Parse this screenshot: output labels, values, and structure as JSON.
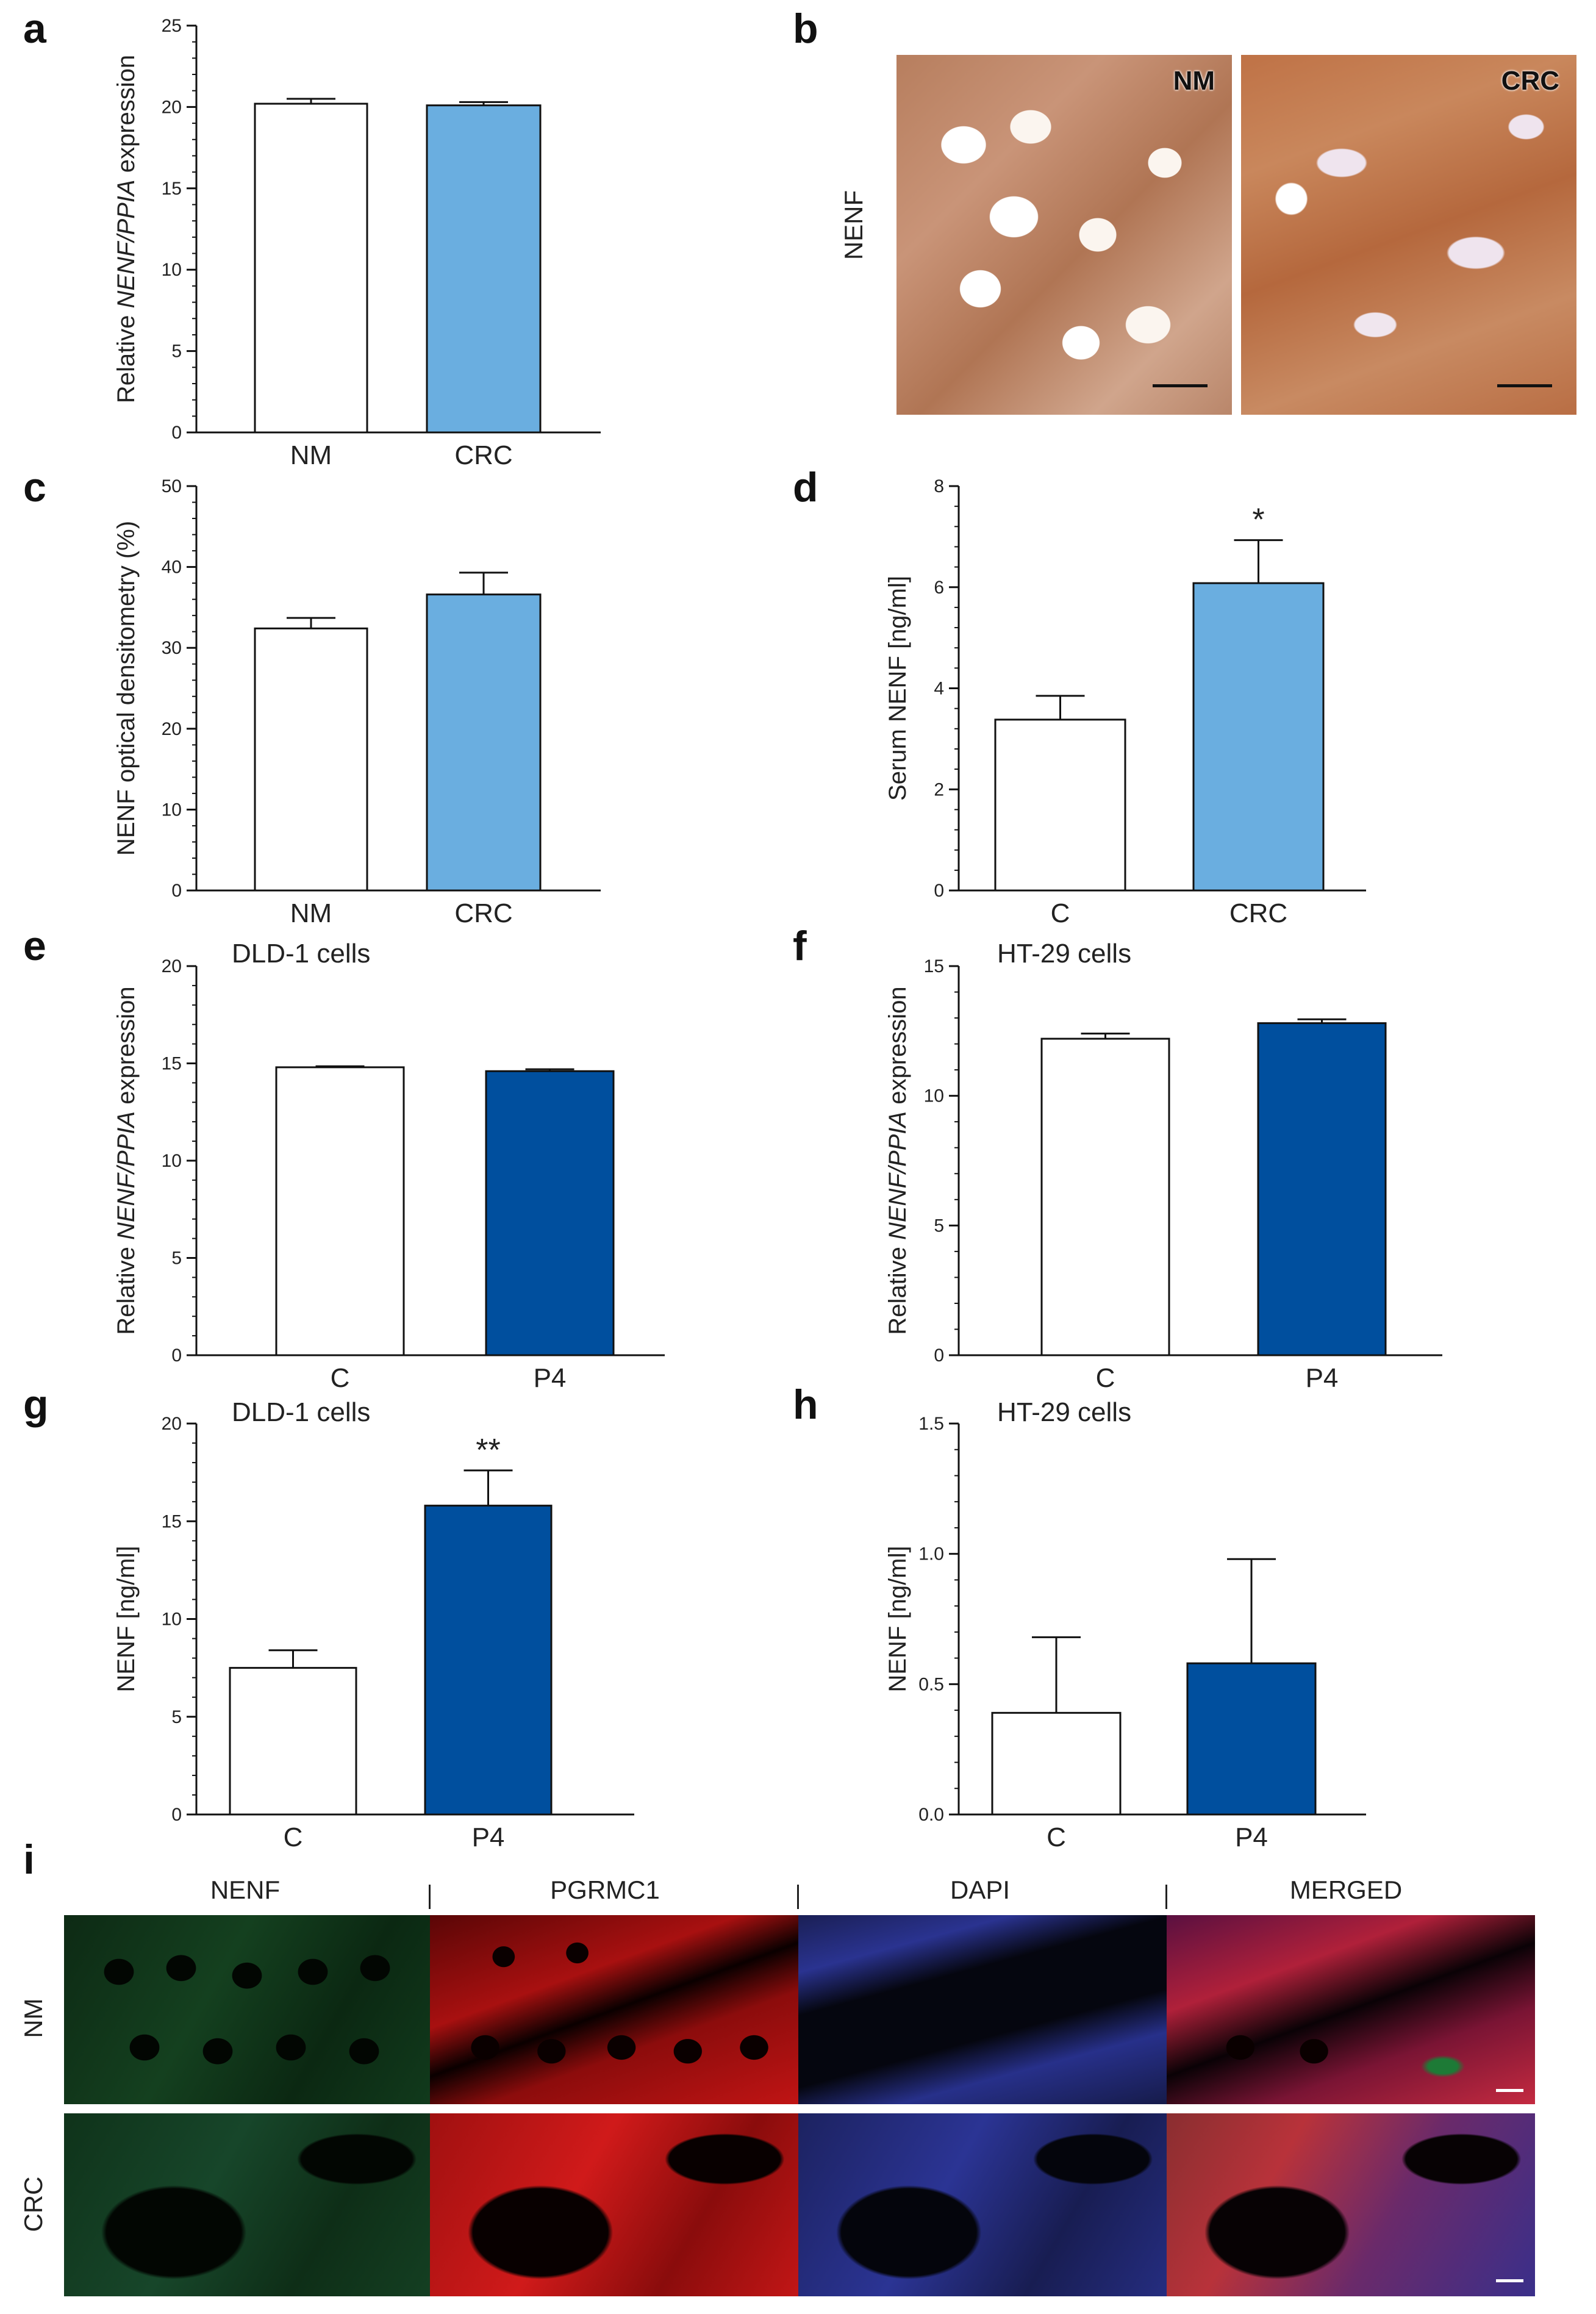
{
  "panels": {
    "a": "a",
    "b": "b",
    "c": "c",
    "d": "d",
    "e": "e",
    "f": "f",
    "g": "g",
    "h": "h",
    "i": "i"
  },
  "chart_data": [
    {
      "id": "a",
      "type": "bar",
      "categories": [
        "NM",
        "CRC"
      ],
      "values": [
        20.2,
        20.1
      ],
      "errors": [
        0.3,
        0.2
      ],
      "colors": [
        "#ffffff",
        "#6aaee0"
      ],
      "ylabel": "Relative NENF/PPIA expression",
      "ylim": [
        0,
        25
      ],
      "yticks": [
        0,
        5,
        10,
        15,
        20,
        25
      ],
      "title": "",
      "significance": [
        "",
        ""
      ]
    },
    {
      "id": "c",
      "type": "bar",
      "categories": [
        "NM",
        "CRC"
      ],
      "values": [
        32.4,
        36.6
      ],
      "errors": [
        1.3,
        2.7
      ],
      "colors": [
        "#ffffff",
        "#6aaee0"
      ],
      "ylabel": "NENF optical densitometry (%)",
      "ylim": [
        0,
        50
      ],
      "yticks": [
        0,
        10,
        20,
        30,
        40,
        50
      ],
      "title": "",
      "significance": [
        "",
        ""
      ]
    },
    {
      "id": "d",
      "type": "bar",
      "categories": [
        "C",
        "CRC"
      ],
      "values": [
        3.38,
        6.08
      ],
      "errors": [
        0.47,
        0.85
      ],
      "colors": [
        "#ffffff",
        "#6aaee0"
      ],
      "ylabel": "Serum NENF [ng/ml]",
      "ylim": [
        0,
        8
      ],
      "yticks": [
        0,
        2,
        4,
        6,
        8
      ],
      "title": "",
      "significance": [
        "",
        "*"
      ]
    },
    {
      "id": "e",
      "type": "bar",
      "categories": [
        "C",
        "P4"
      ],
      "values": [
        14.8,
        14.6
      ],
      "errors": [
        0.05,
        0.1
      ],
      "colors": [
        "#ffffff",
        "#004f9e"
      ],
      "ylabel": "Relative NENF/PPIA expression",
      "ylim": [
        0,
        20
      ],
      "yticks": [
        0,
        5,
        10,
        15,
        20
      ],
      "title": "DLD-1 cells",
      "significance": [
        "",
        ""
      ]
    },
    {
      "id": "f",
      "type": "bar",
      "categories": [
        "C",
        "P4"
      ],
      "values": [
        12.2,
        12.8
      ],
      "errors": [
        0.2,
        0.15
      ],
      "colors": [
        "#ffffff",
        "#004f9e"
      ],
      "ylabel": "Relative NENF/PPIA expression",
      "ylim": [
        0,
        15
      ],
      "yticks": [
        0,
        5,
        10,
        15
      ],
      "title": "HT-29 cells",
      "significance": [
        "",
        ""
      ]
    },
    {
      "id": "g",
      "type": "bar",
      "categories": [
        "C",
        "P4"
      ],
      "values": [
        7.5,
        15.8
      ],
      "errors": [
        0.9,
        1.8
      ],
      "colors": [
        "#ffffff",
        "#004f9e"
      ],
      "ylabel": "NENF [ng/ml]",
      "ylim": [
        0,
        20
      ],
      "yticks": [
        0,
        5,
        10,
        15,
        20
      ],
      "title": "DLD-1 cells",
      "significance": [
        "",
        "**"
      ]
    },
    {
      "id": "h",
      "type": "bar",
      "categories": [
        "C",
        "P4"
      ],
      "values": [
        0.39,
        0.58
      ],
      "errors": [
        0.29,
        0.4
      ],
      "colors": [
        "#ffffff",
        "#004f9e"
      ],
      "ylabel": "NENF [ng/ml]",
      "ylim": [
        0,
        1.5
      ],
      "yticks": [
        0.0,
        0.5,
        1.0,
        1.5
      ],
      "ytick_labels": [
        "0.0",
        "0.5",
        "1.0",
        "1.5"
      ],
      "title": "HT-29 cells",
      "significance": [
        "",
        ""
      ]
    }
  ],
  "panel_b": {
    "row_label": "NENF",
    "labels": [
      "NM",
      "CRC"
    ]
  },
  "panel_i": {
    "columns": [
      "NENF",
      "PGRMC1",
      "DAPI",
      "MERGED"
    ],
    "rows": [
      "NM",
      "CRC"
    ]
  }
}
